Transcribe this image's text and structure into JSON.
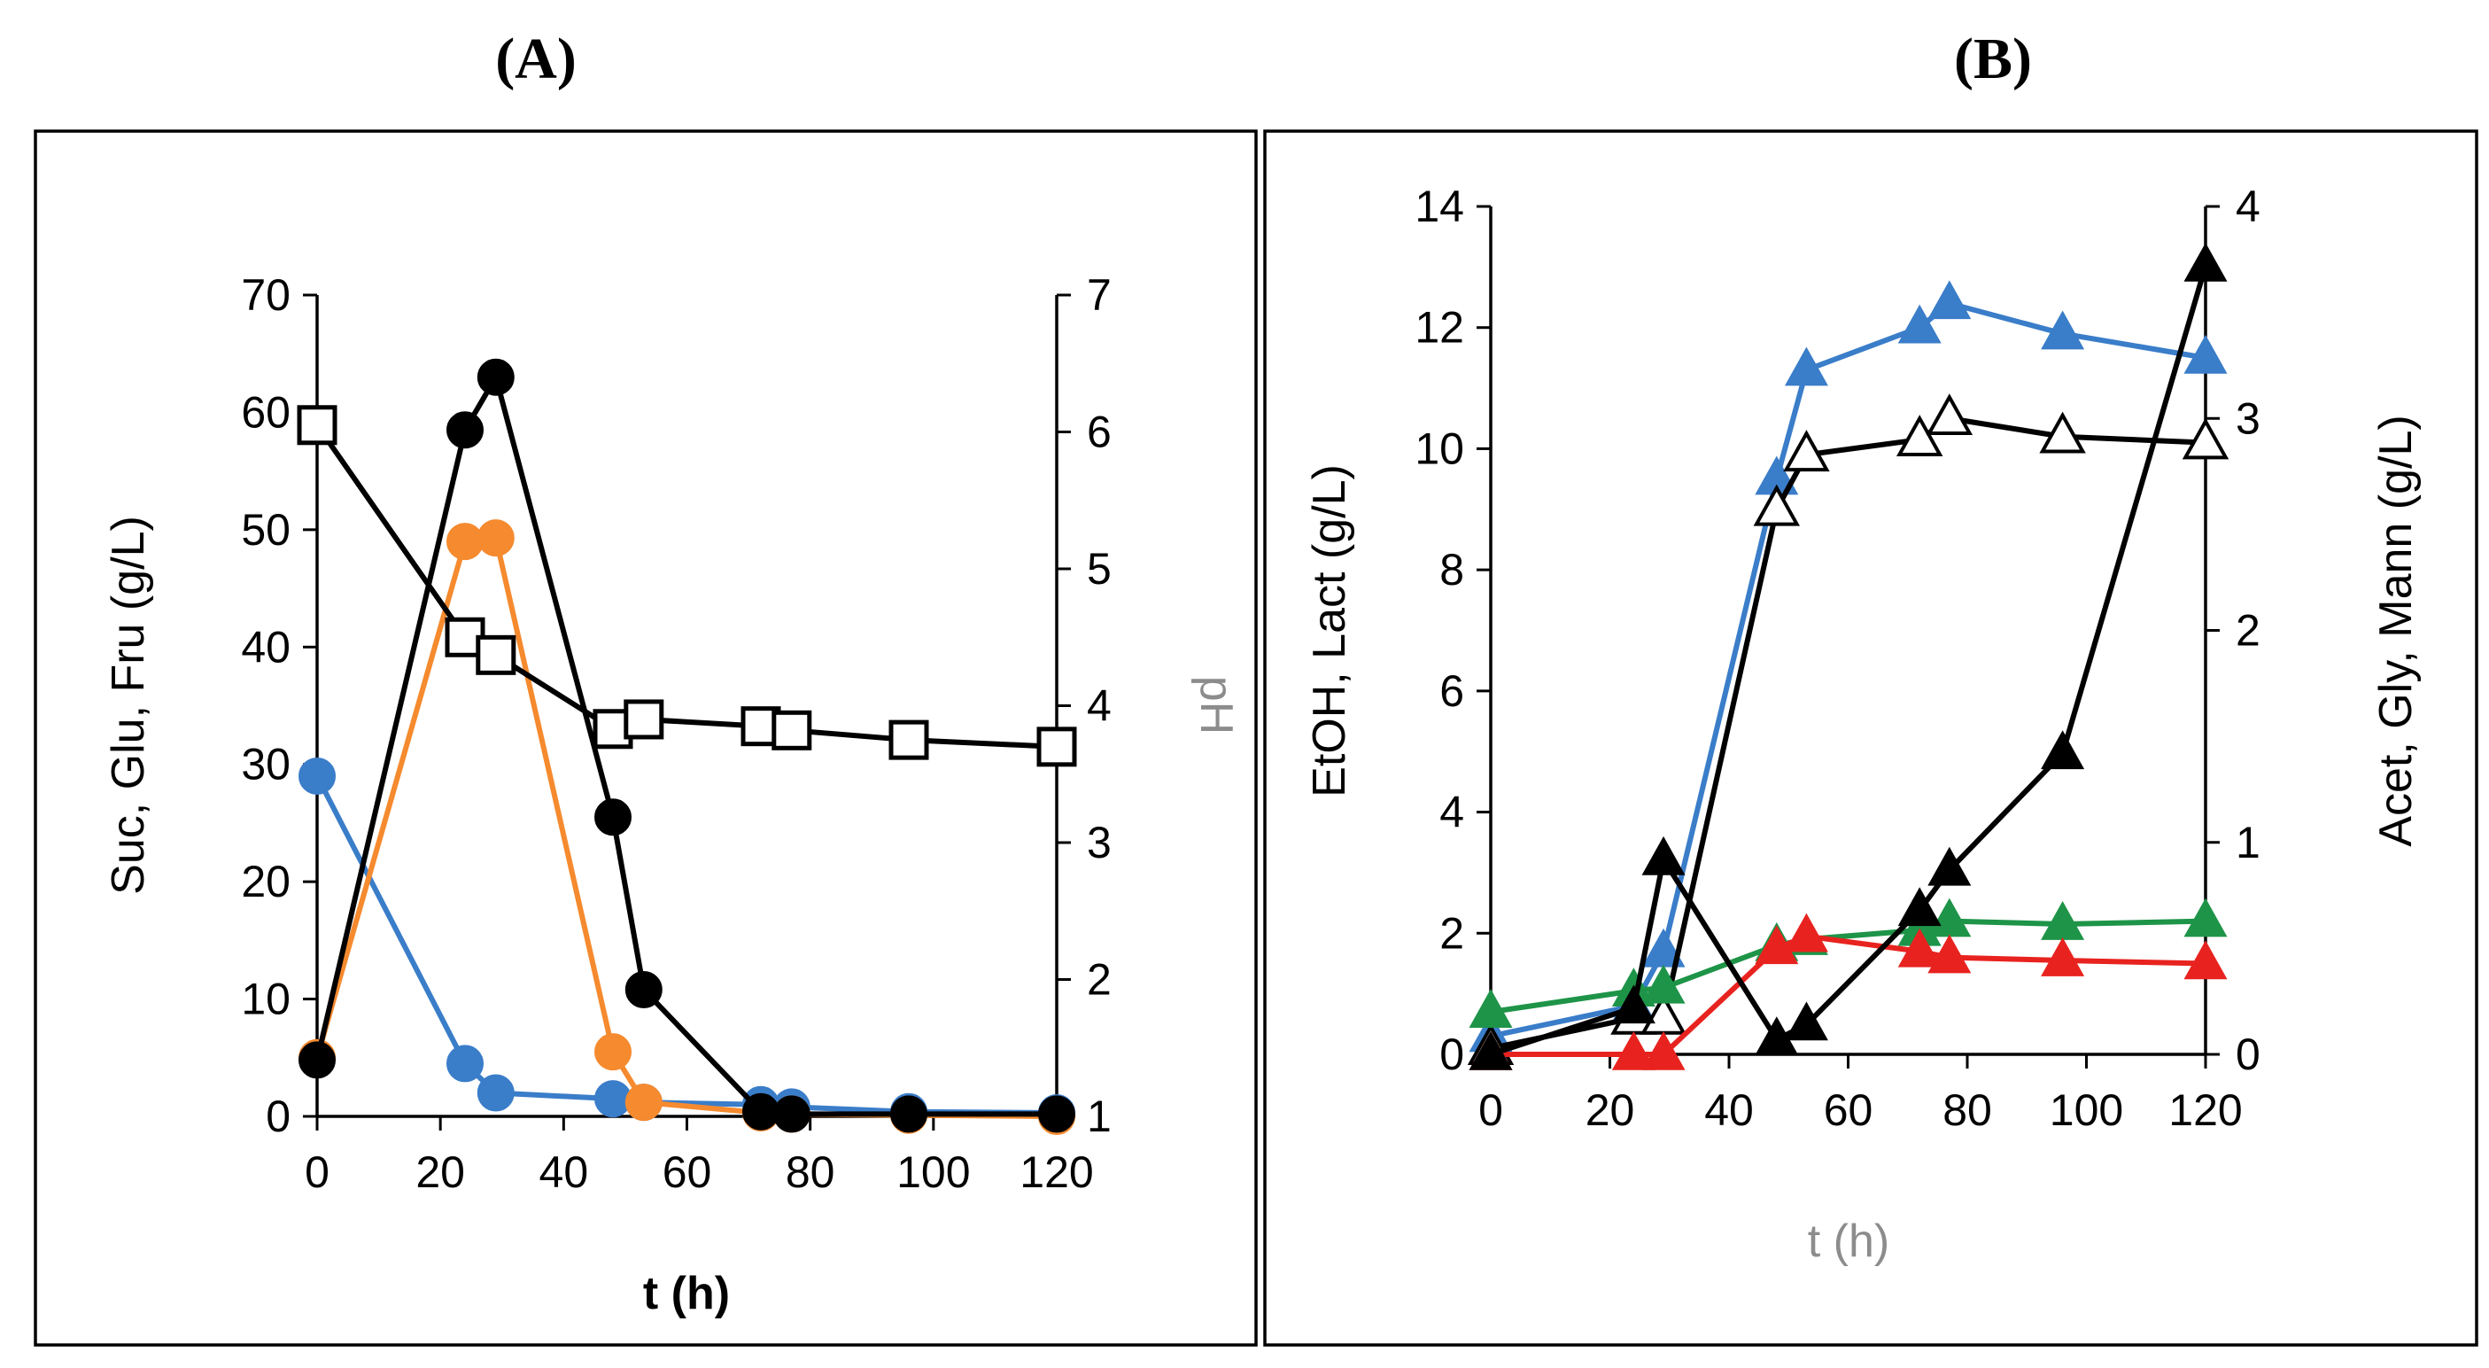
{
  "panels": {
    "a": {
      "label": "(A)"
    },
    "b": {
      "label": "(B)"
    }
  },
  "chart_data": [
    {
      "type": "line",
      "panel": "(A)",
      "xlabel": "t (h)",
      "ylabel_left": "Suc, Glu, Fru (g/L)",
      "ylabel_right": "pH",
      "xlim": [
        0,
        120
      ],
      "ylim_left": [
        0,
        70
      ],
      "ylim_right": [
        1,
        7
      ],
      "x_ticks": [
        0,
        20,
        40,
        60,
        80,
        100,
        120
      ],
      "y_ticks_left": [
        0,
        10,
        20,
        30,
        40,
        50,
        60,
        70
      ],
      "y_ticks_right": [
        1,
        2,
        3,
        4,
        5,
        6,
        7
      ],
      "grid": false,
      "series": [
        {
          "key": "blue-circles",
          "axis": "left",
          "color": "#3A7DC9",
          "marker": "circle-filled",
          "points": [
            [
              0,
              29
            ],
            [
              24,
              4.5
            ],
            [
              29,
              2
            ],
            [
              48,
              1.5
            ],
            [
              53,
              1.2
            ],
            [
              72,
              1
            ],
            [
              77,
              0.8
            ],
            [
              96,
              0.4
            ],
            [
              120,
              0.3
            ]
          ]
        },
        {
          "key": "orange-circles",
          "axis": "left",
          "color": "#F58A2E",
          "marker": "circle-filled",
          "points": [
            [
              0,
              5
            ],
            [
              24,
              49
            ],
            [
              29,
              49.3
            ],
            [
              48,
              5.5
            ],
            [
              53,
              1.2
            ],
            [
              72,
              0.3
            ],
            [
              77,
              0.2
            ],
            [
              96,
              0.1
            ],
            [
              120,
              0
            ]
          ]
        },
        {
          "key": "black-circles",
          "axis": "left",
          "color": "#000000",
          "marker": "circle-filled",
          "points": [
            [
              0,
              4.8
            ],
            [
              24,
              58.5
            ],
            [
              29,
              63
            ],
            [
              48,
              25.5
            ],
            [
              53,
              10.8
            ],
            [
              72,
              0.4
            ],
            [
              77,
              0.2
            ],
            [
              96,
              0.2
            ],
            [
              120,
              0.2
            ]
          ]
        },
        {
          "key": "ph-squares",
          "axis": "right",
          "color": "#000000",
          "marker": "square-open",
          "points": [
            [
              0,
              6.05
            ],
            [
              24,
              4.5
            ],
            [
              29,
              4.37
            ],
            [
              48,
              3.83
            ],
            [
              53,
              3.9
            ],
            [
              72,
              3.85
            ],
            [
              77,
              3.82
            ],
            [
              96,
              3.75
            ],
            [
              120,
              3.7
            ]
          ]
        }
      ]
    },
    {
      "type": "line",
      "panel": "(B)",
      "xlabel": "t (h)",
      "ylabel_left": "EtOH, Lact (g/L)",
      "ylabel_right": "Acet, Gly, Mann (g/L)",
      "xlim": [
        0,
        120
      ],
      "ylim_left": [
        0,
        14
      ],
      "ylim_right": [
        0,
        4
      ],
      "x_ticks": [
        0,
        20,
        40,
        60,
        80,
        100,
        120
      ],
      "y_ticks_left": [
        0,
        2,
        4,
        6,
        8,
        10,
        12,
        14
      ],
      "y_ticks_right": [
        0,
        1,
        2,
        3,
        4
      ],
      "grid": false,
      "series": [
        {
          "key": "blue-triangles",
          "axis": "left",
          "color": "#3A7DC9",
          "marker": "triangle-filled",
          "points": [
            [
              0,
              0.3
            ],
            [
              24,
              0.8
            ],
            [
              29,
              1.7
            ],
            [
              48,
              9.5
            ],
            [
              53,
              11.3
            ],
            [
              72,
              12
            ],
            [
              77,
              12.4
            ],
            [
              96,
              11.9
            ],
            [
              120,
              11.5
            ]
          ]
        },
        {
          "key": "black-open-triangles",
          "axis": "left",
          "color": "#000000",
          "marker": "triangle-open",
          "points": [
            [
              0,
              0.1
            ],
            [
              24,
              0.6
            ],
            [
              29,
              0.6
            ],
            [
              48,
              9
            ],
            [
              53,
              9.9
            ],
            [
              72,
              10.15
            ],
            [
              77,
              10.5
            ],
            [
              96,
              10.2
            ],
            [
              120,
              10.1
            ]
          ]
        },
        {
          "key": "green-triangles",
          "axis": "left",
          "color": "#1E9448",
          "marker": "triangle-filled",
          "points": [
            [
              0,
              0.7
            ],
            [
              24,
              1.05
            ],
            [
              29,
              1.1
            ],
            [
              48,
              1.8
            ],
            [
              53,
              1.9
            ],
            [
              72,
              2.05
            ],
            [
              77,
              2.2
            ],
            [
              96,
              2.15
            ],
            [
              120,
              2.2
            ]
          ]
        },
        {
          "key": "red-triangles",
          "axis": "left",
          "color": "#E8231F",
          "marker": "triangle-filled",
          "points": [
            [
              0,
              0
            ],
            [
              24,
              0
            ],
            [
              29,
              0
            ],
            [
              48,
              1.75
            ],
            [
              53,
              1.95
            ],
            [
              72,
              1.7
            ],
            [
              77,
              1.6
            ],
            [
              96,
              1.55
            ],
            [
              120,
              1.5
            ]
          ]
        },
        {
          "key": "black-filled-triangles",
          "axis": "right",
          "color": "#000000",
          "marker": "triangle-filled",
          "points": [
            [
              0,
              0
            ],
            [
              24,
              0.22
            ],
            [
              29,
              0.92
            ],
            [
              48,
              0.07
            ],
            [
              53,
              0.14
            ],
            [
              72,
              0.68
            ],
            [
              77,
              0.87
            ],
            [
              96,
              1.42
            ],
            [
              120,
              3.72
            ]
          ]
        }
      ]
    }
  ]
}
